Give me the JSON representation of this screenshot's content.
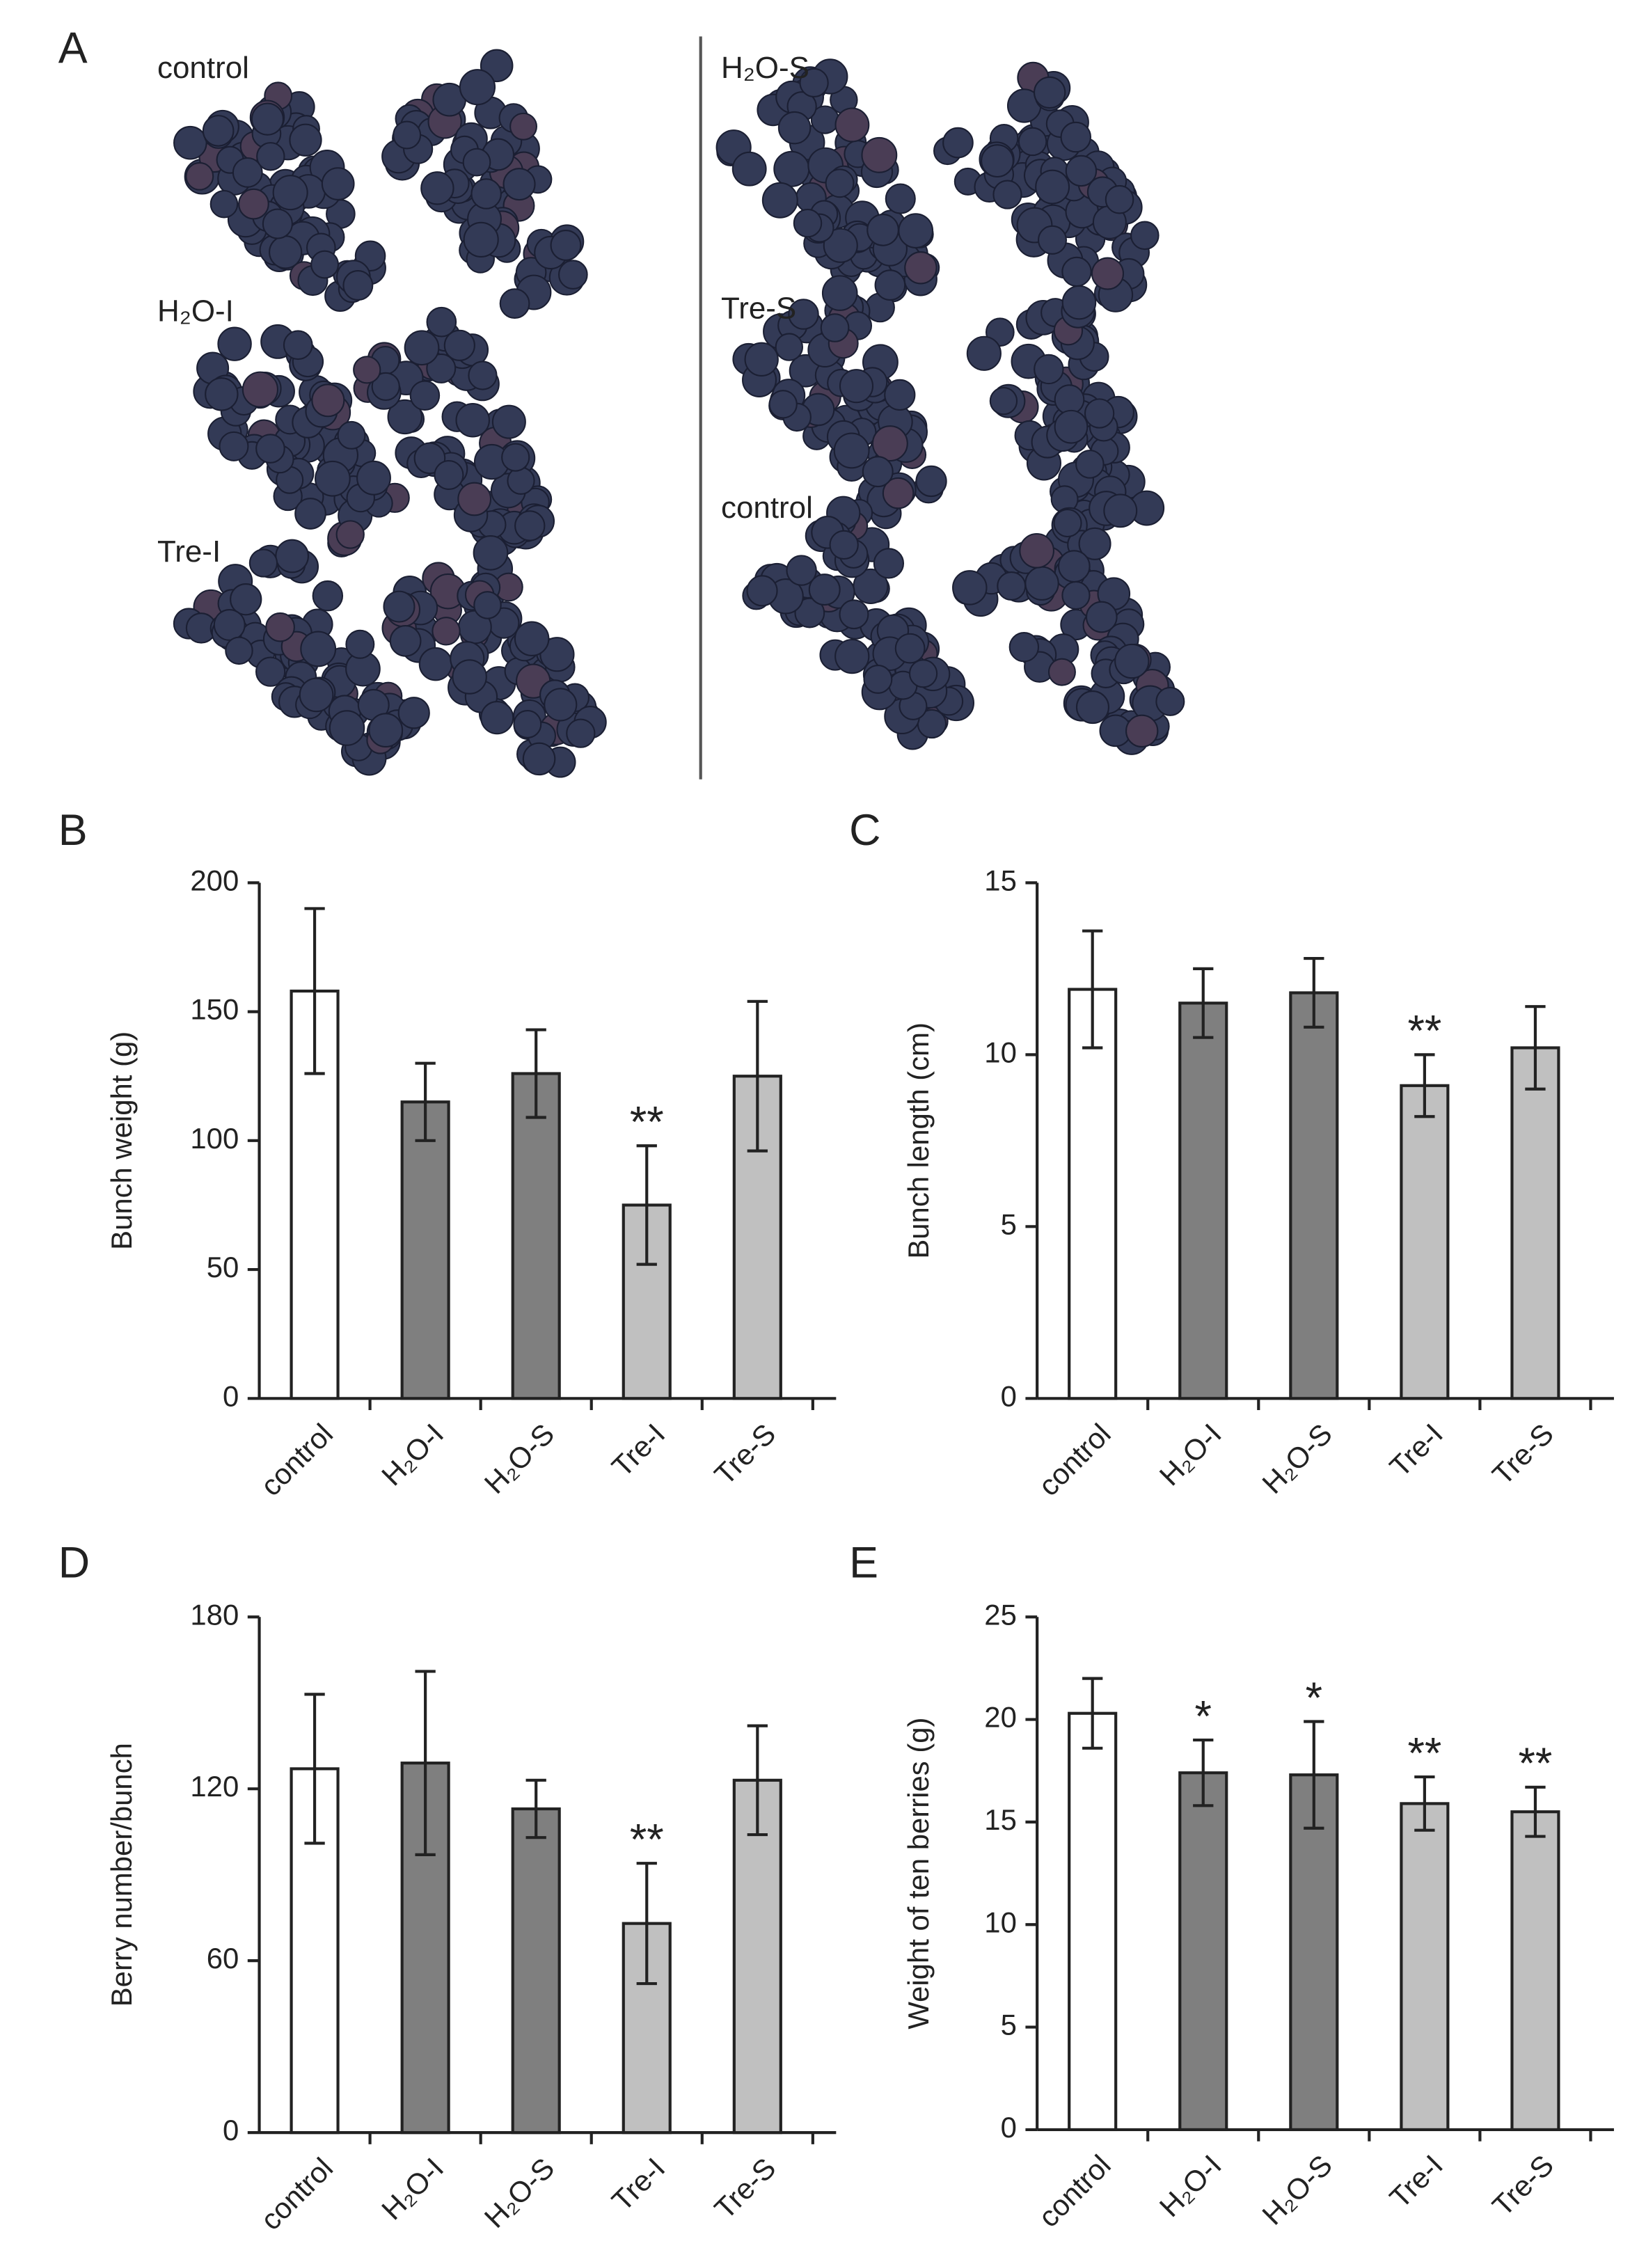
{
  "panel_a": {
    "label": "A",
    "groups": [
      "control",
      "H₂O-I",
      "Tre-I",
      "H₂O-S",
      "Tre-S",
      "control"
    ]
  },
  "chart_data": [
    {
      "type": "bar",
      "panel": "B",
      "ylabel": "Bunch weight (g)",
      "categories": [
        "control",
        "H₂O-I",
        "H₂O-S",
        "Tre-I",
        "Tre-S"
      ],
      "values": [
        158,
        115,
        126,
        75,
        125
      ],
      "errors": [
        32,
        15,
        17,
        23,
        29
      ],
      "colors": [
        "#ffffff",
        "#7f7f7f",
        "#7f7f7f",
        "#c0c0c0",
        "#c0c0c0"
      ],
      "significance": [
        null,
        null,
        null,
        "**",
        null
      ],
      "ylim": [
        0,
        200
      ],
      "yticks": [
        0,
        50,
        100,
        150,
        200
      ]
    },
    {
      "type": "bar",
      "panel": "C",
      "ylabel": "Bunch length (cm)",
      "categories": [
        "control",
        "H₂O-I",
        "H₂O-S",
        "Tre-I",
        "Tre-S"
      ],
      "values": [
        11.9,
        11.5,
        11.8,
        9.1,
        10.2
      ],
      "errors": [
        1.7,
        1.0,
        1.0,
        0.9,
        1.2
      ],
      "colors": [
        "#ffffff",
        "#7f7f7f",
        "#7f7f7f",
        "#c0c0c0",
        "#c0c0c0"
      ],
      "significance": [
        null,
        null,
        null,
        "**",
        null
      ],
      "ylim": [
        0,
        15
      ],
      "yticks": [
        0,
        5,
        10,
        15
      ]
    },
    {
      "type": "bar",
      "panel": "D",
      "ylabel": "Berry number/bunch",
      "categories": [
        "control",
        "H₂O-I",
        "H₂O-S",
        "Tre-I",
        "Tre-S"
      ],
      "values": [
        127,
        129,
        113,
        73,
        123
      ],
      "errors": [
        26,
        32,
        10,
        21,
        19
      ],
      "colors": [
        "#ffffff",
        "#7f7f7f",
        "#7f7f7f",
        "#c0c0c0",
        "#c0c0c0"
      ],
      "significance": [
        null,
        null,
        null,
        "**",
        null
      ],
      "ylim": [
        0,
        180
      ],
      "yticks": [
        0,
        60,
        120,
        180
      ]
    },
    {
      "type": "bar",
      "panel": "E",
      "ylabel": "Weight of ten berries (g)",
      "categories": [
        "control",
        "H₂O-I",
        "H₂O-S",
        "Tre-I",
        "Tre-S"
      ],
      "values": [
        20.3,
        17.4,
        17.3,
        15.9,
        15.5
      ],
      "errors": [
        1.7,
        1.6,
        2.6,
        1.3,
        1.2
      ],
      "colors": [
        "#ffffff",
        "#7f7f7f",
        "#7f7f7f",
        "#c0c0c0",
        "#c0c0c0"
      ],
      "significance": [
        null,
        "*",
        "*",
        "**",
        "**"
      ],
      "ylim": [
        0,
        25
      ],
      "yticks": [
        0,
        5,
        10,
        15,
        20,
        25
      ]
    }
  ]
}
